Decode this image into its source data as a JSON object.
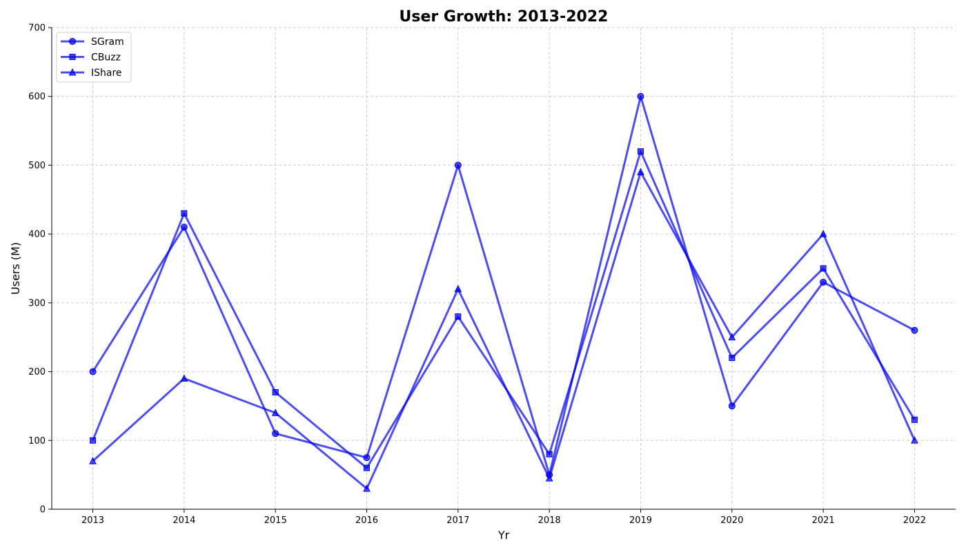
{
  "chart_data": {
    "type": "line",
    "title": "User Growth: 2013-2022",
    "xlabel": "Yr",
    "ylabel": "Users (M)",
    "x": [
      "2013",
      "2014",
      "2015",
      "2016",
      "2017",
      "2018",
      "2019",
      "2020",
      "2021",
      "2022"
    ],
    "ylim": [
      0,
      700
    ],
    "yticks": [
      0,
      100,
      200,
      300,
      400,
      500,
      600,
      700
    ],
    "grid": true,
    "legend_position": "top-left",
    "series": [
      {
        "name": "SGram",
        "marker": "circle",
        "color": "#0000ee",
        "values": [
          200,
          410,
          110,
          75,
          500,
          50,
          600,
          150,
          330,
          260
        ]
      },
      {
        "name": "CBuzz",
        "marker": "square",
        "color": "#0000ee",
        "values": [
          100,
          430,
          170,
          60,
          280,
          80,
          520,
          220,
          350,
          130
        ]
      },
      {
        "name": "IShare",
        "marker": "triangle",
        "color": "#0000ee",
        "values": [
          70,
          190,
          140,
          30,
          320,
          45,
          490,
          250,
          400,
          100
        ]
      }
    ]
  }
}
